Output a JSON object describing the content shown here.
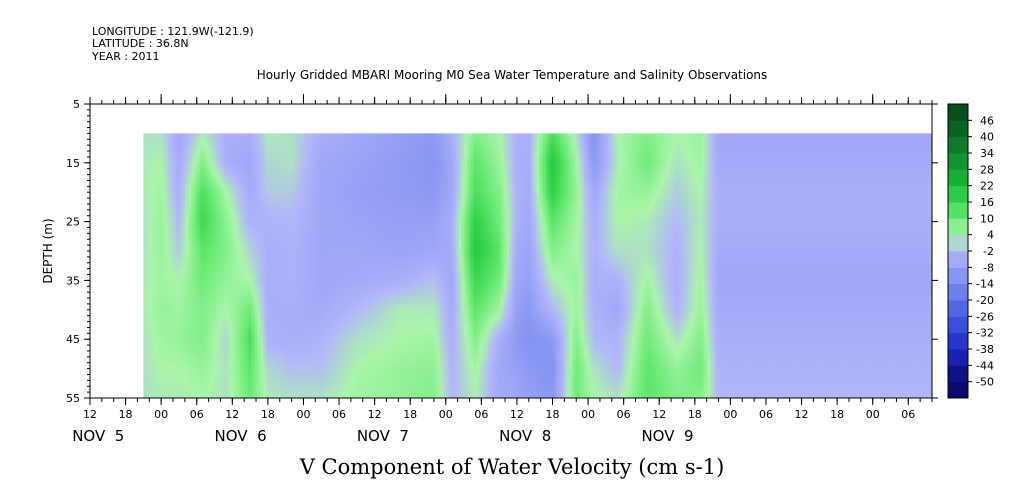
{
  "header": {
    "longitude": "LONGITUDE : 121.9W(-121.9)",
    "latitude": "LATITUDE : 36.8N",
    "year": "YEAR : 2011"
  },
  "chart_data": {
    "type": "heatmap",
    "title": "Hourly Gridded MBARI Mooring M0 Sea Water Temperature and Salinity Observations",
    "xlabel": "V Component of Water Velocity (cm s-1)",
    "ylabel": "DEPTH (m)",
    "y_axis": {
      "reversed": true,
      "ylim": [
        5,
        55
      ],
      "ticks": [
        5,
        15,
        25,
        35,
        45,
        55
      ],
      "data_top_depth": 10
    },
    "x_axis": {
      "xlim_hours": [
        108,
        250
      ],
      "hour_ticks": [
        {
          "h": 108,
          "label": "12"
        },
        {
          "h": 114,
          "label": "18"
        },
        {
          "h": 120,
          "label": "00"
        },
        {
          "h": 126,
          "label": "06"
        },
        {
          "h": 132,
          "label": "12"
        },
        {
          "h": 138,
          "label": "18"
        },
        {
          "h": 144,
          "label": "00"
        },
        {
          "h": 150,
          "label": "06"
        },
        {
          "h": 156,
          "label": "12"
        },
        {
          "h": 162,
          "label": "18"
        },
        {
          "h": 168,
          "label": "00"
        },
        {
          "h": 174,
          "label": "06"
        },
        {
          "h": 180,
          "label": "12"
        },
        {
          "h": 186,
          "label": "18"
        },
        {
          "h": 192,
          "label": "00"
        },
        {
          "h": 198,
          "label": "06"
        },
        {
          "h": 204,
          "label": "12"
        },
        {
          "h": 210,
          "label": "18"
        },
        {
          "h": 216,
          "label": "00"
        },
        {
          "h": 222,
          "label": "06"
        },
        {
          "h": 228,
          "label": "12"
        },
        {
          "h": 234,
          "label": "18"
        },
        {
          "h": 240,
          "label": "00"
        },
        {
          "h": 246,
          "label": "06"
        }
      ],
      "days": [
        {
          "h": 105,
          "label": "NOV  5"
        },
        {
          "h": 129,
          "label": "NOV  6"
        },
        {
          "h": 153,
          "label": "NOV  7"
        },
        {
          "h": 177,
          "label": "NOV  8"
        },
        {
          "h": 201,
          "label": "NOV  9"
        }
      ],
      "data_start_hour": 117
    },
    "colorbar": {
      "levels": [
        -50,
        -44,
        -38,
        -32,
        -26,
        -20,
        -14,
        -8,
        -2,
        4,
        10,
        16,
        22,
        28,
        34,
        40,
        46
      ],
      "labels": [
        "46",
        "40",
        "34",
        "28",
        "22",
        "16",
        "10",
        "4",
        "-2",
        "-8",
        "-14",
        "-20",
        "-26",
        "-32",
        "-38",
        "-44",
        "-50"
      ]
    },
    "field_estimate": {
      "depths": [
        10,
        15,
        20,
        25,
        30,
        35,
        40,
        45,
        50,
        55
      ],
      "series": [
        {
          "hour": 117,
          "values": [
            2,
            3,
            3,
            2,
            2,
            3,
            3,
            2,
            2,
            2
          ]
        },
        {
          "hour": 120,
          "values": [
            2,
            4,
            5,
            6,
            6,
            5,
            6,
            5,
            4,
            3
          ]
        },
        {
          "hour": 123,
          "values": [
            -6,
            -5,
            -4,
            -2,
            0,
            4,
            5,
            6,
            4,
            3
          ]
        },
        {
          "hour": 127,
          "values": [
            3,
            8,
            14,
            16,
            12,
            10,
            8,
            8,
            6,
            4
          ]
        },
        {
          "hour": 131,
          "values": [
            -4,
            -4,
            4,
            7,
            8,
            6,
            4,
            1,
            2,
            2
          ]
        },
        {
          "hour": 135,
          "values": [
            -4,
            -6,
            -5,
            -3,
            1,
            4,
            10,
            14,
            12,
            10
          ]
        },
        {
          "hour": 138,
          "values": [
            3,
            1,
            0,
            -3,
            -4,
            -4,
            -4,
            -3,
            1,
            3
          ]
        },
        {
          "hour": 142,
          "values": [
            2,
            2,
            0,
            -2,
            -3,
            -3,
            -4,
            -4,
            -1,
            2
          ]
        },
        {
          "hour": 147,
          "values": [
            -4,
            -6,
            -6,
            -6,
            -6,
            -6,
            -5,
            -3,
            -1,
            2
          ]
        },
        {
          "hour": 153,
          "values": [
            -6,
            -7,
            -8,
            -7,
            -6,
            -5,
            -2,
            2,
            4,
            5
          ]
        },
        {
          "hour": 160,
          "values": [
            -8,
            -9,
            -9,
            -8,
            -7,
            -4,
            3,
            4,
            6,
            6
          ]
        },
        {
          "hour": 166,
          "values": [
            -10,
            -11,
            -10,
            -8,
            -6,
            -1,
            3,
            5,
            7,
            8
          ]
        },
        {
          "hour": 169,
          "values": [
            -4,
            -6,
            -6,
            -4,
            -5,
            -6,
            -5,
            -4,
            -3,
            -2
          ]
        },
        {
          "hour": 173,
          "values": [
            8,
            12,
            14,
            18,
            20,
            16,
            12,
            8,
            5,
            3
          ]
        },
        {
          "hour": 177,
          "values": [
            4,
            6,
            8,
            10,
            12,
            10,
            5,
            -4,
            -6,
            -5
          ]
        },
        {
          "hour": 180,
          "values": [
            -3,
            -4,
            -3,
            -3,
            -5,
            -6,
            -8,
            -10,
            -8,
            -6
          ]
        },
        {
          "hour": 182,
          "values": [
            -4,
            -4,
            -5,
            -6,
            -7,
            -8,
            -10,
            -12,
            -10,
            -8
          ]
        },
        {
          "hour": 186,
          "values": [
            14,
            20,
            18,
            12,
            8,
            3,
            -2,
            -10,
            -12,
            -10
          ]
        },
        {
          "hour": 190,
          "values": [
            2,
            5,
            6,
            5,
            4,
            6,
            5,
            8,
            10,
            10
          ]
        },
        {
          "hour": 193,
          "values": [
            -12,
            -10,
            -6,
            -4,
            -3,
            -4,
            -3,
            -2,
            2,
            4
          ]
        },
        {
          "hour": 197,
          "values": [
            4,
            3,
            5,
            4,
            2,
            -3,
            -6,
            -3,
            -2,
            2
          ]
        },
        {
          "hour": 202,
          "values": [
            8,
            10,
            6,
            3,
            2,
            5,
            8,
            10,
            12,
            12
          ]
        },
        {
          "hour": 207,
          "values": [
            4,
            2,
            0,
            -2,
            -3,
            -4,
            -3,
            2,
            6,
            8
          ]
        },
        {
          "hour": 211,
          "values": [
            6,
            5,
            4,
            3,
            4,
            5,
            6,
            8,
            10,
            8
          ]
        },
        {
          "hour": 214,
          "values": [
            -6,
            -5,
            -4,
            -4,
            -5,
            -6,
            -5,
            -4,
            -3,
            -2
          ]
        }
      ]
    }
  }
}
